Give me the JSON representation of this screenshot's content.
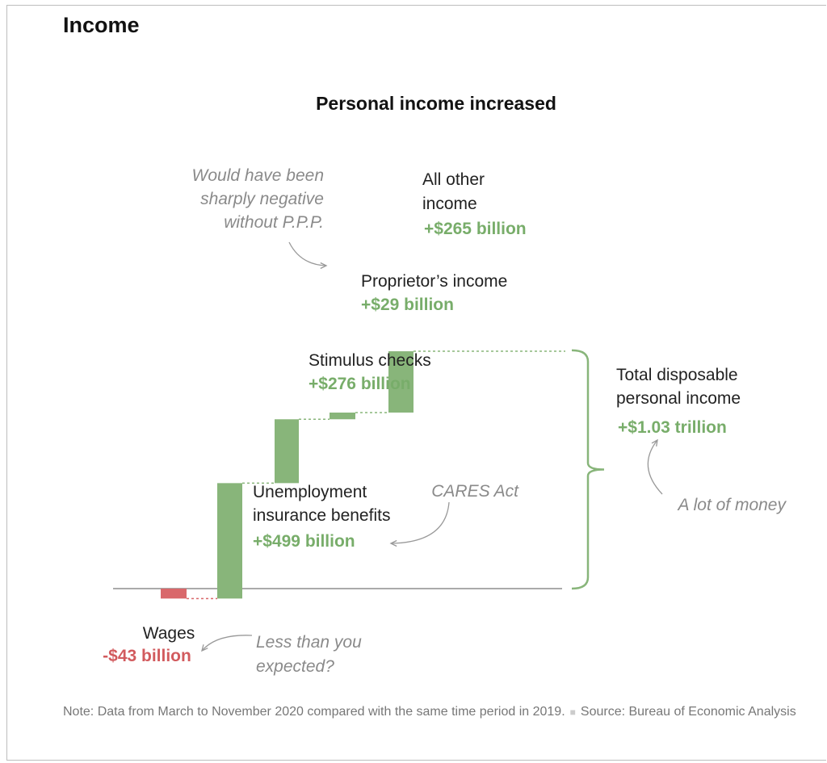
{
  "section_title": "Income",
  "note": "Note: Data from March to November 2020 compared with the same time period in 2019.",
  "source": "Source: Bureau of Economic Analysis",
  "colors": {
    "positive": "#88b57a",
    "negative": "#d9686b",
    "positive_text": "#78ad6a",
    "negative_text": "#d25b5e",
    "annotation": "#8a8a8a"
  },
  "chart_data": {
    "type": "waterfall",
    "title": "Personal income increased",
    "unit": "billion",
    "steps": [
      {
        "name": "Wages",
        "value": -43,
        "label": "-$43 billion"
      },
      {
        "name": "Unemployment insurance benefits",
        "name_lines": [
          "Unemployment",
          "insurance benefits"
        ],
        "value": 499,
        "label": "+$499 billion"
      },
      {
        "name": "Stimulus checks",
        "name_lines": [
          "Stimulus checks"
        ],
        "value": 276,
        "label": "+$276 billion"
      },
      {
        "name": "Proprietor’s income",
        "name_lines": [
          "Proprietor’s income"
        ],
        "value": 29,
        "label": "+$29 billion"
      },
      {
        "name": "All other income",
        "name_lines": [
          "All other",
          "income"
        ],
        "value": 265,
        "label": "+$265 billion"
      }
    ],
    "total": {
      "name": "Total disposable personal income",
      "name_lines": [
        "Total disposable",
        "personal income"
      ],
      "value": 1030,
      "label": "+$1.03 trillion"
    },
    "annotations": {
      "wages": [
        "Less than you",
        "expected?"
      ],
      "unemployment": [
        "CARES Act"
      ],
      "proprietor": [
        "Would have been",
        "sharply negative",
        "without P.P.P."
      ],
      "total": [
        "A lot of money"
      ]
    }
  }
}
